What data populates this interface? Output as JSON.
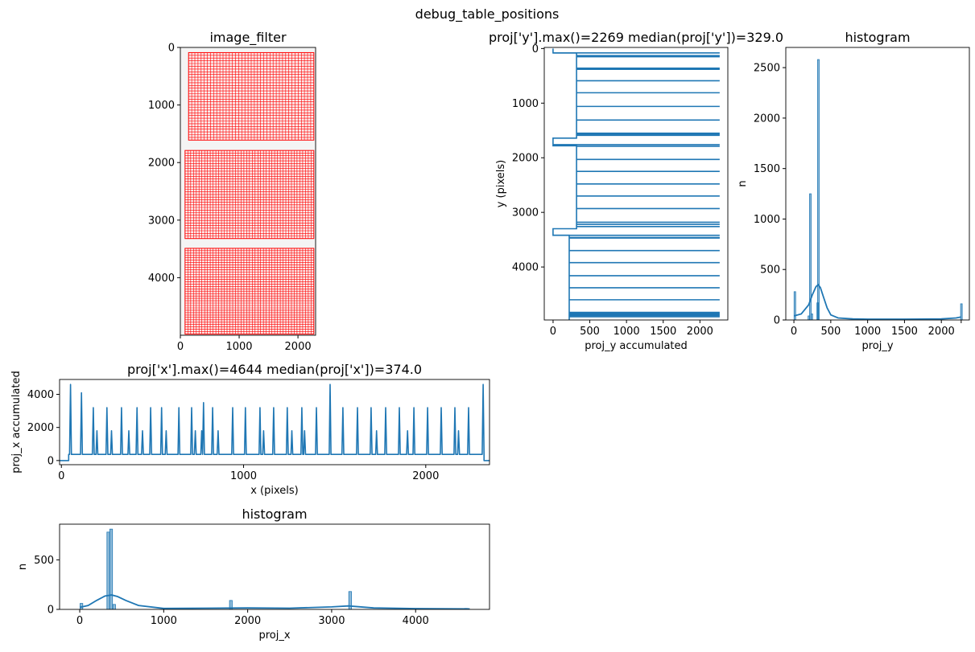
{
  "suptitle": "debug_table_positions",
  "colors": {
    "line": "#1f77b4",
    "hist": "#1f77b4",
    "table_grid": "#ff0000",
    "axes": "#000000"
  },
  "chart_data": [
    {
      "id": "image",
      "type": "heatmap",
      "title": "image_filter",
      "xlabel": "",
      "ylabel": "",
      "xlim": [
        0,
        2300
      ],
      "ylim": [
        5000,
        0
      ],
      "xticks": [
        0,
        1000,
        2000
      ],
      "yticks": [
        0,
        1000,
        2000,
        3000,
        4000
      ],
      "tables": [
        {
          "x0": 140,
          "x1": 2270,
          "y0": 90,
          "y1": 1610,
          "cols": 40,
          "rows": 32
        },
        {
          "x0": 80,
          "x1": 2270,
          "y0": 1790,
          "y1": 3320,
          "cols": 46,
          "rows": 34
        },
        {
          "x0": 80,
          "x1": 2270,
          "y0": 3490,
          "y1": 4980,
          "cols": 46,
          "rows": 36
        }
      ]
    },
    {
      "id": "projy",
      "type": "line",
      "title": "proj['y'].max()=2269 median(proj['y'])=329.0",
      "xlabel": "proj_y accumulated",
      "ylabel": "y (pixels)",
      "xlim": [
        -120,
        2380
      ],
      "ylim": [
        4970,
        -20
      ],
      "xticks": [
        0,
        500,
        1000,
        1500,
        2000
      ],
      "yticks": [
        0,
        1000,
        2000,
        3000,
        4000
      ],
      "baseline_segments": [
        [
          0,
          80,
          0
        ],
        [
          80,
          1640,
          320
        ],
        [
          1640,
          1780,
          0
        ],
        [
          1780,
          3300,
          320
        ],
        [
          3300,
          3420,
          0
        ],
        [
          3420,
          4970,
          220
        ]
      ],
      "spikes": [
        80,
        130,
        150,
        360,
        380,
        590,
        810,
        1060,
        1310,
        1550,
        1570,
        1590,
        1760,
        1790,
        2030,
        2250,
        2480,
        2700,
        2930,
        3180,
        3220,
        3260,
        3420,
        3460,
        3470,
        3700,
        3920,
        4160,
        4380,
        4600,
        4830,
        4850,
        4870,
        4890,
        4910
      ]
    },
    {
      "id": "histy",
      "type": "bar",
      "title": "histogram",
      "xlabel": "proj_y",
      "ylabel": "n",
      "xlim": [
        -110,
        2380
      ],
      "ylim": [
        0,
        2700
      ],
      "xticks": [
        0,
        500,
        1000,
        1500,
        2000,
        2269
      ],
      "xtick_labels": [
        "0",
        "500",
        "1000",
        "1500",
        "2000",
        ""
      ],
      "yticks": [
        0,
        500,
        1000,
        1500,
        2000,
        2500
      ],
      "x": [
        10,
        200,
        220,
        240,
        320,
        329,
        2269
      ],
      "values": [
        280,
        40,
        1250,
        60,
        170,
        2580,
        160
      ],
      "kde_x": [
        0,
        100,
        200,
        250,
        300,
        330,
        360,
        400,
        450,
        500,
        600,
        800,
        1000,
        1500,
        2000,
        2200,
        2269
      ],
      "kde_y": [
        40,
        60,
        150,
        250,
        330,
        350,
        320,
        230,
        120,
        50,
        20,
        10,
        8,
        8,
        10,
        20,
        30
      ]
    },
    {
      "id": "projx",
      "type": "line",
      "title": "proj['x'].max()=4644 median(proj['x'])=374.0",
      "xlabel": "x (pixels)",
      "ylabel": "proj_x accumulated",
      "xlim": [
        -10,
        2350
      ],
      "ylim": [
        -250,
        4900
      ],
      "xticks": [
        0,
        1000,
        2000
      ],
      "yticks": [
        0,
        2000,
        4000
      ],
      "baseline": 374,
      "start_x": 40,
      "end_x": 2320,
      "peaks": [
        {
          "x": 50,
          "y": 4600
        },
        {
          "x": 110,
          "y": 4100
        },
        {
          "x": 175,
          "y": 3200
        },
        {
          "x": 195,
          "y": 1800
        },
        {
          "x": 250,
          "y": 3200
        },
        {
          "x": 275,
          "y": 1800
        },
        {
          "x": 330,
          "y": 3200
        },
        {
          "x": 370,
          "y": 1800
        },
        {
          "x": 415,
          "y": 3200
        },
        {
          "x": 445,
          "y": 1800
        },
        {
          "x": 490,
          "y": 3200
        },
        {
          "x": 550,
          "y": 3200
        },
        {
          "x": 575,
          "y": 1800
        },
        {
          "x": 645,
          "y": 3200
        },
        {
          "x": 715,
          "y": 3200
        },
        {
          "x": 735,
          "y": 1800
        },
        {
          "x": 770,
          "y": 1800
        },
        {
          "x": 780,
          "y": 3500
        },
        {
          "x": 830,
          "y": 3200
        },
        {
          "x": 860,
          "y": 1800
        },
        {
          "x": 940,
          "y": 3200
        },
        {
          "x": 1010,
          "y": 3200
        },
        {
          "x": 1090,
          "y": 3200
        },
        {
          "x": 1110,
          "y": 1800
        },
        {
          "x": 1165,
          "y": 3200
        },
        {
          "x": 1240,
          "y": 3200
        },
        {
          "x": 1265,
          "y": 1800
        },
        {
          "x": 1320,
          "y": 3200
        },
        {
          "x": 1335,
          "y": 1800
        },
        {
          "x": 1400,
          "y": 3200
        },
        {
          "x": 1475,
          "y": 4600
        },
        {
          "x": 1545,
          "y": 3200
        },
        {
          "x": 1625,
          "y": 3200
        },
        {
          "x": 1700,
          "y": 3200
        },
        {
          "x": 1730,
          "y": 1800
        },
        {
          "x": 1780,
          "y": 3200
        },
        {
          "x": 1855,
          "y": 3200
        },
        {
          "x": 1900,
          "y": 1800
        },
        {
          "x": 1935,
          "y": 3200
        },
        {
          "x": 2010,
          "y": 3200
        },
        {
          "x": 2085,
          "y": 3200
        },
        {
          "x": 2160,
          "y": 3200
        },
        {
          "x": 2180,
          "y": 1800
        },
        {
          "x": 2235,
          "y": 3200
        },
        {
          "x": 2315,
          "y": 4600
        }
      ]
    },
    {
      "id": "histx",
      "type": "bar",
      "title": "histogram",
      "xlabel": "proj_x",
      "ylabel": "n",
      "xlim": [
        -240,
        4880
      ],
      "ylim": [
        0,
        860
      ],
      "xticks": [
        0,
        1000,
        2000,
        3000,
        4000
      ],
      "yticks": [
        0,
        500
      ],
      "x": [
        20,
        340,
        374,
        410,
        1800,
        3220,
        4600
      ],
      "values": [
        60,
        780,
        810,
        50,
        90,
        180,
        10
      ],
      "kde_x": [
        0,
        100,
        200,
        300,
        380,
        450,
        550,
        700,
        1000,
        1500,
        2000,
        2500,
        3000,
        3200,
        3500,
        4000,
        4644
      ],
      "kde_y": [
        20,
        40,
        90,
        135,
        145,
        130,
        90,
        40,
        10,
        12,
        15,
        12,
        25,
        35,
        15,
        8,
        5
      ]
    }
  ]
}
